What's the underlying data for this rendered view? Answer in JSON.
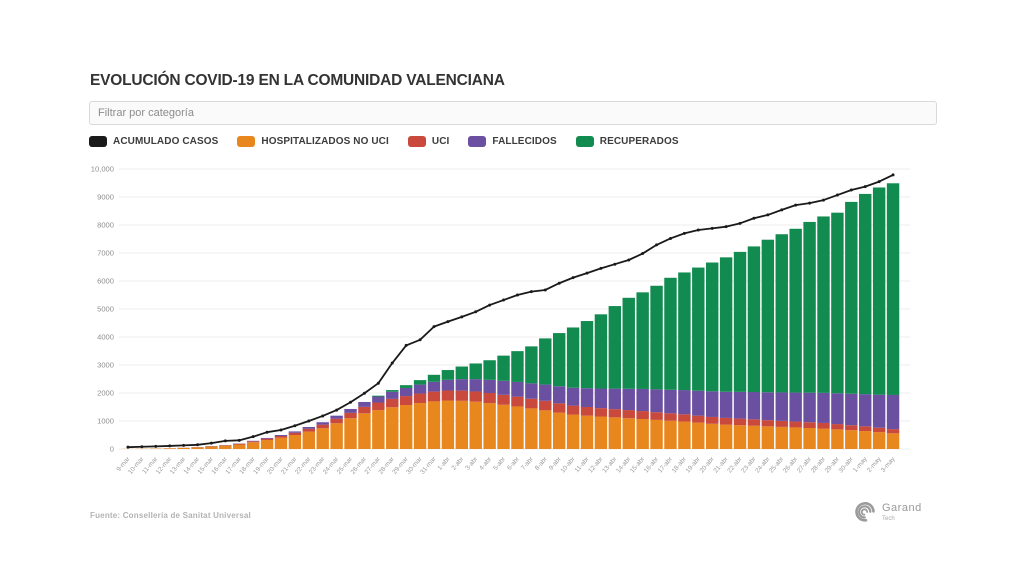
{
  "page": {
    "title": "EVOLUCIÓN COVID-19 EN LA COMUNIDAD VALENCIANA",
    "filter_placeholder": "Filtrar por categoría",
    "source": "Fuente: Consellería de Sanitat Universal",
    "logo": {
      "name": "Garand",
      "sub": "Tech",
      "icon": "swirl-icon"
    }
  },
  "legend": [
    {
      "label": "ACUMULADO CASOS",
      "color": "#1a1a1a"
    },
    {
      "label": "HOSPITALIZADOS NO UCI",
      "color": "#e8871e"
    },
    {
      "label": "UCI",
      "color": "#c9493d"
    },
    {
      "label": "FALLECIDOS",
      "color": "#6b4fa1"
    },
    {
      "label": "RECUPERADOS",
      "color": "#128b50"
    }
  ],
  "chart_data": {
    "type": "bar",
    "subtype": "stacked-bars-with-line-overlay",
    "grid": true,
    "ylim": [
      0,
      10000
    ],
    "yticks": [
      0,
      1000,
      2000,
      3000,
      4000,
      5000,
      6000,
      7000,
      8000,
      9000,
      10000
    ],
    "ytick_labels": [
      "0",
      "1000",
      "2000",
      "3000",
      "4000",
      "5000",
      "6000",
      "7000",
      "8000",
      "9000",
      "10,000"
    ],
    "categories": [
      "9-mar",
      "10-mar",
      "11-mar",
      "12-mar",
      "13-mar",
      "14-mar",
      "15-mar",
      "16-mar",
      "17-mar",
      "18-mar",
      "19-mar",
      "20-mar",
      "21-mar",
      "22-mar",
      "23-mar",
      "24-mar",
      "25-mar",
      "26-mar",
      "27-mar",
      "28-mar",
      "29-mar",
      "30-mar",
      "31-mar",
      "1-abr",
      "2-abr",
      "3-abr",
      "4-abr",
      "5-abr",
      "6-abr",
      "7-abr",
      "8-abr",
      "9-abr",
      "10-abr",
      "11-abr",
      "12-abr",
      "13-abr",
      "14-abr",
      "15-abr",
      "16-abr",
      "17-abr",
      "18-abr",
      "19-abr",
      "20-abr",
      "21-abr",
      "22-abr",
      "23-abr",
      "24-abr",
      "25-abr",
      "26-abr",
      "27-abr",
      "28-abr",
      "29-abr",
      "30-abr",
      "1-may",
      "2-may",
      "3-may"
    ],
    "series": [
      {
        "name": "HOSPITALIZADOS NO UCI",
        "render": "bar",
        "color": "#e8871e",
        "values": [
          5,
          10,
          15,
          25,
          40,
          60,
          90,
          120,
          160,
          240,
          320,
          400,
          500,
          620,
          740,
          920,
          1100,
          1275,
          1390,
          1490,
          1570,
          1640,
          1700,
          1730,
          1720,
          1690,
          1640,
          1580,
          1520,
          1450,
          1380,
          1300,
          1230,
          1190,
          1160,
          1130,
          1100,
          1070,
          1040,
          1010,
          980,
          940,
          900,
          870,
          850,
          830,
          810,
          790,
          770,
          750,
          730,
          700,
          670,
          640,
          600,
          560
        ]
      },
      {
        "name": "UCI",
        "render": "bar",
        "color": "#c9493d",
        "values": [
          0,
          0,
          1,
          2,
          4,
          6,
          10,
          15,
          25,
          35,
          50,
          65,
          80,
          100,
          130,
          160,
          190,
          230,
          270,
          300,
          320,
          340,
          350,
          360,
          365,
          365,
          360,
          355,
          350,
          345,
          340,
          330,
          320,
          310,
          300,
          295,
          290,
          285,
          275,
          265,
          260,
          250,
          245,
          240,
          235,
          230,
          220,
          215,
          210,
          205,
          200,
          190,
          180,
          170,
          160,
          150
        ]
      },
      {
        "name": "FALLECIDOS",
        "render": "bar",
        "color": "#6b4fa1",
        "values": [
          0,
          0,
          0,
          1,
          2,
          3,
          5,
          8,
          12,
          18,
          25,
          35,
          48,
          65,
          86,
          110,
          140,
          175,
          215,
          255,
          290,
          320,
          350,
          380,
          410,
          440,
          470,
          500,
          525,
          550,
          580,
          610,
          640,
          670,
          700,
          730,
          760,
          790,
          815,
          840,
          865,
          890,
          915,
          935,
          955,
          975,
          995,
          1015,
          1035,
          1055,
          1075,
          1100,
          1125,
          1150,
          1180,
          1220
        ]
      },
      {
        "name": "RECUPERADOS",
        "render": "bar",
        "color": "#128b50",
        "values": [
          0,
          0,
          0,
          0,
          0,
          0,
          0,
          0,
          0,
          0,
          0,
          0,
          0,
          0,
          0,
          0,
          0,
          0,
          30,
          60,
          100,
          160,
          250,
          350,
          450,
          560,
          700,
          900,
          1100,
          1320,
          1650,
          1900,
          2150,
          2400,
          2650,
          2950,
          3250,
          3450,
          3700,
          4000,
          4200,
          4400,
          4600,
          4800,
          5000,
          5200,
          5450,
          5650,
          5850,
          6100,
          6300,
          6450,
          6850,
          7150,
          7400,
          7560
        ]
      },
      {
        "name": "ACUMULADO CASOS",
        "render": "line",
        "color": "#1a1a1a",
        "values": [
          65,
          80,
          95,
          110,
          130,
          150,
          210,
          290,
          310,
          440,
          600,
          680,
          830,
          1000,
          1180,
          1390,
          1670,
          1990,
          2350,
          3070,
          3700,
          3900,
          4370,
          4550,
          4720,
          4900,
          5140,
          5320,
          5500,
          5620,
          5680,
          5920,
          6120,
          6280,
          6450,
          6600,
          6750,
          6980,
          7290,
          7520,
          7700,
          7820,
          7880,
          7940,
          8060,
          8240,
          8360,
          8540,
          8710,
          8780,
          8890,
          9070,
          9250,
          9370,
          9550,
          9790
        ]
      }
    ]
  }
}
